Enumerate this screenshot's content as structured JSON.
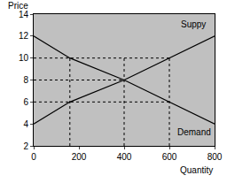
{
  "chart_data": {
    "type": "line",
    "x_label": "Quantity",
    "y_label": "Price",
    "xlim": [
      0,
      800
    ],
    "xticks": [
      0,
      200,
      400,
      600,
      800
    ],
    "ylim": [
      2,
      14
    ],
    "yticks": [
      2,
      4,
      6,
      8,
      10,
      12,
      14
    ],
    "grid": false,
    "series": [
      {
        "name": "Suppy",
        "color": "#000000",
        "line_style": "solid",
        "x": [
          0,
          160,
          400,
          600,
          800
        ],
        "values": [
          4,
          6,
          8,
          10,
          12
        ]
      },
      {
        "name": "Demand",
        "color": "#000000",
        "line_style": "solid",
        "x": [
          0,
          160,
          400,
          600,
          800
        ],
        "values": [
          12,
          10,
          8,
          6,
          4
        ]
      },
      {
        "color": "#000000",
        "line_style": "dotted",
        "x": [
          0,
          600
        ],
        "values": [
          10,
          10
        ]
      },
      {
        "color": "#000000",
        "line_style": "dotted",
        "x": [
          0,
          400
        ],
        "values": [
          8,
          8
        ]
      },
      {
        "color": "#000000",
        "line_style": "dotted",
        "x": [
          0,
          600
        ],
        "values": [
          6,
          6
        ]
      },
      {
        "color": "#000000",
        "line_style": "dotted",
        "x": [
          160,
          160
        ],
        "values": [
          2,
          10
        ]
      },
      {
        "color": "#000000",
        "line_style": "dotted",
        "x": [
          400,
          400
        ],
        "values": [
          2,
          10
        ]
      },
      {
        "color": "#000000",
        "line_style": "dotted",
        "x": [
          600,
          600
        ],
        "values": [
          2,
          10
        ]
      }
    ]
  }
}
